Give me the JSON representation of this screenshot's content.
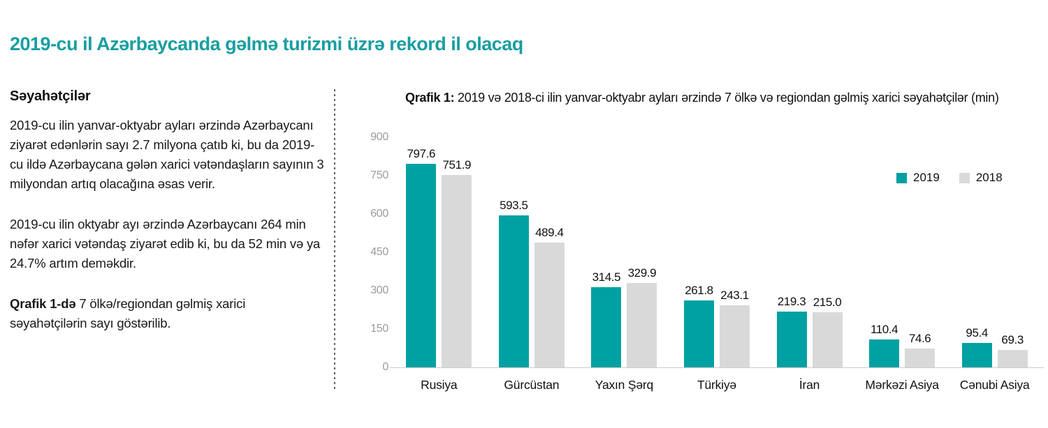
{
  "page": {
    "title": "2019-cu il Azərbaycanda gəlmə turizmi üzrə  rekord il olacaq"
  },
  "sidebar": {
    "heading": "Səyahətçilər",
    "paragraph1": "2019-cu ilin yanvar-oktyabr ayları ərzində Azərbaycanı ziyarət edənlərin sayı 2.7 milyona çatıb ki, bu da 2019-cu ildə Azərbaycana gələn xarici vətəndaşların sayının 3 milyondan artıq olacağına əsas verir.",
    "paragraph2": "2019-cu ilin oktyabr ayı ərzində Azərbaycanı 264 min nəfər xarici vətəndaş ziyarət edib ki, bu da 52 min və ya 24.7% artım deməkdir.",
    "paragraph3_lead": "Qrafik 1-də",
    "paragraph3_rest": " 7 ölkə/regiondan gəlmiş xarici səyahətçilərin sayı göstərilib."
  },
  "chart": {
    "title_lead": "Qrafik 1:",
    "title_rest": " 2019 və 2018-ci ilin yanvar-oktyabr ayları ərzində 7 ölkə və regiondan gəlmiş xarici səyahətçilər (min)"
  },
  "chart_data": {
    "type": "bar",
    "title": "Qrafik 1: 2019 və 2018-ci ilin yanvar-oktyabr ayları ərzində 7 ölkə və regiondan gəlmiş xarici səyahətçilər (min)",
    "categories": [
      "Rusiya",
      "Gürcüstan",
      "Yaxın Şərq",
      "Türkiyə",
      "İran",
      "Mərkəzi Asiya",
      "Cənubi Asiya"
    ],
    "series": [
      {
        "name": "2019",
        "color": "#00a1a3",
        "values": [
          797.6,
          593.5,
          314.5,
          261.8,
          219.3,
          110.4,
          95.4
        ],
        "labels": [
          "797.6",
          "593.5",
          "314.5",
          "261.8",
          "219.3",
          "110.4",
          "95.4"
        ]
      },
      {
        "name": "2018",
        "color": "#d9d9d9",
        "values": [
          751.9,
          489.4,
          329.9,
          243.1,
          215.0,
          74.6,
          69.3
        ],
        "labels": [
          "751.9",
          "489.4",
          "329.9",
          "243.1",
          "215.0",
          "74.6",
          "69.3"
        ]
      }
    ],
    "xlabel": "",
    "ylabel": "",
    "ylim": [
      0,
      900
    ],
    "yticks": [
      0,
      150,
      300,
      450,
      600,
      750,
      900
    ],
    "grid": false,
    "legend_position": "top-right",
    "value_labels": true
  },
  "colors": {
    "accent_teal": "#189ea0",
    "bar_2019": "#00a1a3",
    "bar_2018": "#d9d9d9",
    "tick_label": "#9b9b9b",
    "baseline": "#cccccc",
    "body_text": "#1a1a1a"
  }
}
